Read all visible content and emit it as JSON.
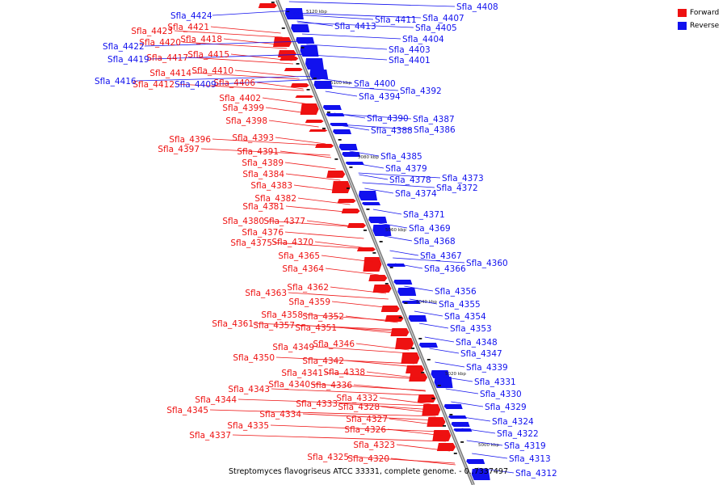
{
  "legend": {
    "forward_label": "Forward",
    "reverse_label": "Reverse",
    "forward_color": "#ee1111",
    "reverse_color": "#1111ee"
  },
  "caption": "Streptomyces flavogriseus ATCC 33331, complete genome. - 0..7337497",
  "scale_ticks": [
    "5120 kbp",
    "5100 kbp",
    "5080 kbp",
    "5060 kbp",
    "5040 kbp",
    "5020 kbp",
    "5000 kbp"
  ],
  "forward_genes": [
    "Sfla_4423",
    "Sfla_4421",
    "Sfla_4420",
    "Sfla_4418",
    "Sfla_4417",
    "Sfla_4415",
    "Sfla_4414",
    "Sfla_4412",
    "Sfla_4410",
    "Sfla_4406",
    "Sfla_4402",
    "Sfla_4399",
    "Sfla_4398",
    "Sfla_4396",
    "Sfla_4393",
    "Sfla_4397",
    "Sfla_4391",
    "Sfla_4389",
    "Sfla_4384",
    "Sfla_4383",
    "Sfla_4382",
    "Sfla_4381",
    "Sfla_4380",
    "Sfla_4377",
    "Sfla_4376",
    "Sfla_4375",
    "Sfla_4370",
    "Sfla_4365",
    "Sfla_4364",
    "Sfla_4363",
    "Sfla_4362",
    "Sfla_4359",
    "Sfla_4358",
    "Sfla_4352",
    "Sfla_4361",
    "Sfla_4357",
    "Sfla_4351",
    "Sfla_4349",
    "Sfla_4346",
    "Sfla_4350",
    "Sfla_4342",
    "Sfla_4341",
    "Sfla_4338",
    "Sfla_4340",
    "Sfla_4336",
    "Sfla_4343",
    "Sfla_4344",
    "Sfla_4332",
    "Sfla_4333",
    "Sfla_4328",
    "Sfla_4345",
    "Sfla_4334",
    "Sfla_4327",
    "Sfla_4335",
    "Sfla_4326",
    "Sfla_4337",
    "Sfla_4323",
    "Sfla_4325",
    "Sfla_4320"
  ],
  "reverse_genes": [
    "Sfla_4424",
    "Sfla_4408",
    "Sfla_4411",
    "Sfla_4407",
    "Sfla_4413",
    "Sfla_4405",
    "Sfla_4422",
    "Sfla_4419",
    "Sfla_4416",
    "Sfla_4409",
    "Sfla_4404",
    "Sfla_4403",
    "Sfla_4401",
    "Sfla_4400",
    "Sfla_4392",
    "Sfla_4394",
    "Sfla_4390",
    "Sfla_4387",
    "Sfla_4388",
    "Sfla_4386",
    "Sfla_4385",
    "Sfla_4379",
    "Sfla_4378",
    "Sfla_4373",
    "Sfla_4374",
    "Sfla_4372",
    "Sfla_4371",
    "Sfla_4369",
    "Sfla_4368",
    "Sfla_4367",
    "Sfla_4366",
    "Sfla_4360",
    "Sfla_4356",
    "Sfla_4355",
    "Sfla_4354",
    "Sfla_4353",
    "Sfla_4348",
    "Sfla_4347",
    "Sfla_4339",
    "Sfla_4331",
    "Sfla_4330",
    "Sfla_4329",
    "Sfla_4324",
    "Sfla_4322",
    "Sfla_4319",
    "Sfla_4313",
    "Sfla_4312"
  ]
}
